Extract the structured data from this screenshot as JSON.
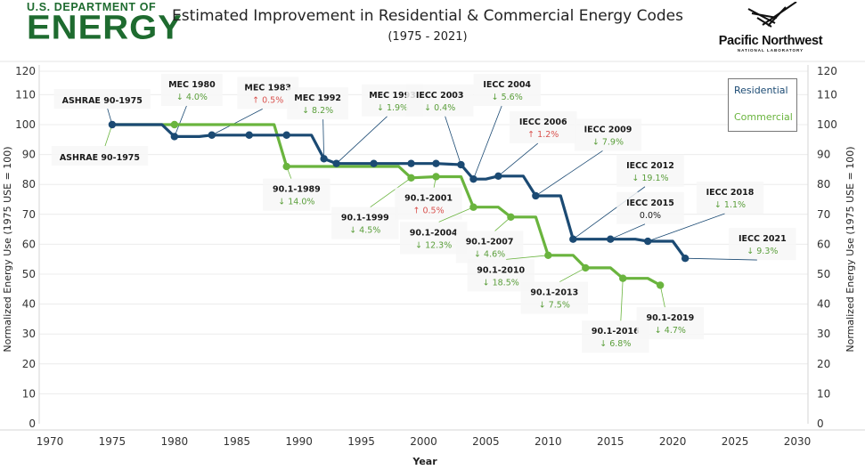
{
  "header": {
    "doe_logo_top": "U.S. DEPARTMENT OF",
    "doe_logo_big": "ENERGY",
    "pnnl_name": "Pacific Northwest",
    "pnnl_sub": "NATIONAL LABORATORY"
  },
  "colors": {
    "residential": "#1b4a73",
    "commercial": "#6ab43e",
    "decrease": "#5a9e3a",
    "increase": "#d9534f",
    "grid": "#ececec",
    "doe_green": "#1e6b2f"
  },
  "chart_data": {
    "type": "line",
    "title": "Estimated Improvement in Residential & Commercial Energy Codes",
    "subtitle": "(1975 - 2021)",
    "xlabel": "Year",
    "ylabel": "Normalized Energy Use (1975 USE = 100)",
    "ylabel_right": "Normalized Energy Use (1975 USE = 100)",
    "xlim": [
      1970,
      2030
    ],
    "ylim": [
      0,
      120
    ],
    "x_ticks": [
      1970,
      1975,
      1980,
      1985,
      1990,
      1995,
      2000,
      2005,
      2010,
      2015,
      2020,
      2025,
      2030
    ],
    "y_ticks": [
      0,
      10,
      20,
      30,
      40,
      50,
      60,
      70,
      80,
      90,
      100,
      110,
      120
    ],
    "grid": true,
    "legend": {
      "placement": "top-right",
      "entries": [
        "Residential",
        "Commercial"
      ]
    },
    "series": [
      {
        "name": "Residential",
        "points": [
          {
            "x": 1975,
            "y": 100.0,
            "marker": true
          },
          {
            "x": 1979,
            "y": 100.0,
            "marker": false
          },
          {
            "x": 1980,
            "y": 96.0,
            "marker": true
          },
          {
            "x": 1982,
            "y": 96.0,
            "marker": false
          },
          {
            "x": 1983,
            "y": 96.5,
            "marker": true
          },
          {
            "x": 1986,
            "y": 96.5,
            "marker": true
          },
          {
            "x": 1989,
            "y": 96.5,
            "marker": true
          },
          {
            "x": 1991,
            "y": 96.5,
            "marker": false
          },
          {
            "x": 1992,
            "y": 88.6,
            "marker": true
          },
          {
            "x": 1993,
            "y": 87.0,
            "marker": true
          },
          {
            "x": 1996,
            "y": 87.0,
            "marker": true
          },
          {
            "x": 1999,
            "y": 87.0,
            "marker": true
          },
          {
            "x": 2001,
            "y": 87.0,
            "marker": true
          },
          {
            "x": 2003,
            "y": 86.6,
            "marker": true
          },
          {
            "x": 2004,
            "y": 81.8,
            "marker": true
          },
          {
            "x": 2005,
            "y": 81.8,
            "marker": false
          },
          {
            "x": 2006,
            "y": 82.8,
            "marker": true
          },
          {
            "x": 2008,
            "y": 82.8,
            "marker": false
          },
          {
            "x": 2009,
            "y": 76.2,
            "marker": true
          },
          {
            "x": 2011,
            "y": 76.2,
            "marker": false
          },
          {
            "x": 2012,
            "y": 61.7,
            "marker": true
          },
          {
            "x": 2015,
            "y": 61.7,
            "marker": true
          },
          {
            "x": 2017,
            "y": 61.7,
            "marker": false
          },
          {
            "x": 2018,
            "y": 61.0,
            "marker": true
          },
          {
            "x": 2020,
            "y": 61.0,
            "marker": false
          },
          {
            "x": 2021,
            "y": 55.3,
            "marker": true
          }
        ]
      },
      {
        "name": "Commercial",
        "points": [
          {
            "x": 1975,
            "y": 100.0,
            "marker": false
          },
          {
            "x": 1980,
            "y": 100.0,
            "marker": true
          },
          {
            "x": 1988,
            "y": 100.0,
            "marker": false
          },
          {
            "x": 1989,
            "y": 86.0,
            "marker": true
          },
          {
            "x": 1998,
            "y": 86.0,
            "marker": false
          },
          {
            "x": 1999,
            "y": 82.2,
            "marker": true
          },
          {
            "x": 2001,
            "y": 82.6,
            "marker": true
          },
          {
            "x": 2003,
            "y": 82.6,
            "marker": false
          },
          {
            "x": 2004,
            "y": 72.4,
            "marker": true
          },
          {
            "x": 2006,
            "y": 72.4,
            "marker": false
          },
          {
            "x": 2007,
            "y": 69.1,
            "marker": true
          },
          {
            "x": 2009,
            "y": 69.1,
            "marker": false
          },
          {
            "x": 2010,
            "y": 56.3,
            "marker": true
          },
          {
            "x": 2012,
            "y": 56.3,
            "marker": false
          },
          {
            "x": 2013,
            "y": 52.1,
            "marker": true
          },
          {
            "x": 2015,
            "y": 52.1,
            "marker": false
          },
          {
            "x": 2016,
            "y": 48.6,
            "marker": true
          },
          {
            "x": 2018,
            "y": 48.6,
            "marker": false
          },
          {
            "x": 2019,
            "y": 46.3,
            "marker": true
          }
        ]
      }
    ],
    "annotations": [
      {
        "series": "Residential",
        "x": 1975,
        "y": 100.0,
        "label": "ASHRAE 90-1975",
        "change": "",
        "dir": "none",
        "lx": 1974.2,
        "ly": 108
      },
      {
        "series": "Commercial",
        "x": 1975,
        "y": 100.0,
        "label": "ASHRAE 90-1975",
        "change": "",
        "dir": "none",
        "lx": 1974,
        "ly": 89
      },
      {
        "series": "Residential",
        "x": 1980,
        "y": 96.0,
        "label": "MEC 1980",
        "change": "4.0%",
        "dir": "down",
        "lx": 1981.4,
        "ly": 111
      },
      {
        "series": "Residential",
        "x": 1983,
        "y": 96.5,
        "label": "MEC 1983",
        "change": "0.5%",
        "dir": "up",
        "lx": 1987.5,
        "ly": 110
      },
      {
        "series": "Residential",
        "x": 1992,
        "y": 88.6,
        "label": "MEC 1992",
        "change": "8.2%",
        "dir": "down",
        "lx": 1991.5,
        "ly": 106.5
      },
      {
        "series": "Residential",
        "x": 1993,
        "y": 87.0,
        "label": "MEC 1993",
        "change": "1.9%",
        "dir": "down",
        "lx": 1997.5,
        "ly": 107.5
      },
      {
        "series": "Residential",
        "x": 2003,
        "y": 86.6,
        "label": "IECC 2003",
        "change": "0.4%",
        "dir": "down",
        "lx": 2001.3,
        "ly": 107.5
      },
      {
        "series": "Residential",
        "x": 2004,
        "y": 81.8,
        "label": "IECC 2004",
        "change": "5.6%",
        "dir": "down",
        "lx": 2006.7,
        "ly": 111
      },
      {
        "series": "Residential",
        "x": 2006,
        "y": 82.8,
        "label": "IECC 2006",
        "change": "1.2%",
        "dir": "up",
        "lx": 2009.6,
        "ly": 98.5
      },
      {
        "series": "Residential",
        "x": 2009,
        "y": 76.2,
        "label": "IECC 2009",
        "change": "7.9%",
        "dir": "down",
        "lx": 2014.8,
        "ly": 96
      },
      {
        "series": "Residential",
        "x": 2012,
        "y": 61.7,
        "label": "IECC 2012",
        "change": "19.1%",
        "dir": "down",
        "lx": 2018.2,
        "ly": 84
      },
      {
        "series": "Residential",
        "x": 2015,
        "y": 61.7,
        "label": "IECC 2015",
        "change": "0.0%",
        "dir": "none",
        "lx": 2018.2,
        "ly": 71.5
      },
      {
        "series": "Residential",
        "x": 2018,
        "y": 61.0,
        "label": "IECC 2018",
        "change": "1.1%",
        "dir": "down",
        "lx": 2024.6,
        "ly": 75
      },
      {
        "series": "Residential",
        "x": 2021,
        "y": 55.3,
        "label": "IECC 2021",
        "change": "9.3%",
        "dir": "down",
        "lx": 2027.2,
        "ly": 59.5
      },
      {
        "series": "Commercial",
        "x": 1989,
        "y": 86.0,
        "label": "90.1-1989",
        "change": "14.0%",
        "dir": "down",
        "lx": 1989.8,
        "ly": 76
      },
      {
        "series": "Commercial",
        "x": 1999,
        "y": 82.2,
        "label": "90.1-1999",
        "change": "4.5%",
        "dir": "down",
        "lx": 1995.3,
        "ly": 66.5
      },
      {
        "series": "Commercial",
        "x": 2001,
        "y": 82.6,
        "label": "90.1-2001",
        "change": "0.5%",
        "dir": "up",
        "lx": 2000.4,
        "ly": 73
      },
      {
        "series": "Commercial",
        "x": 2004,
        "y": 72.4,
        "label": "90.1-2004",
        "change": "12.3%",
        "dir": "down",
        "lx": 2000.8,
        "ly": 61.5
      },
      {
        "series": "Commercial",
        "x": 2007,
        "y": 69.1,
        "label": "90.1-2007",
        "change": "4.6%",
        "dir": "down",
        "lx": 2005.3,
        "ly": 58.5
      },
      {
        "series": "Commercial",
        "x": 2010,
        "y": 56.3,
        "label": "90.1-2010",
        "change": "18.5%",
        "dir": "down",
        "lx": 2006.2,
        "ly": 49
      },
      {
        "series": "Commercial",
        "x": 2013,
        "y": 52.1,
        "label": "90.1-2013",
        "change": "7.5%",
        "dir": "down",
        "lx": 2010.5,
        "ly": 41.5
      },
      {
        "series": "Commercial",
        "x": 2016,
        "y": 48.6,
        "label": "90.1-2016",
        "change": "6.8%",
        "dir": "down",
        "lx": 2015.4,
        "ly": 28.5
      },
      {
        "series": "Commercial",
        "x": 2019,
        "y": 46.3,
        "label": "90.1-2019",
        "change": "4.7%",
        "dir": "down",
        "lx": 2019.8,
        "ly": 33
      }
    ]
  }
}
